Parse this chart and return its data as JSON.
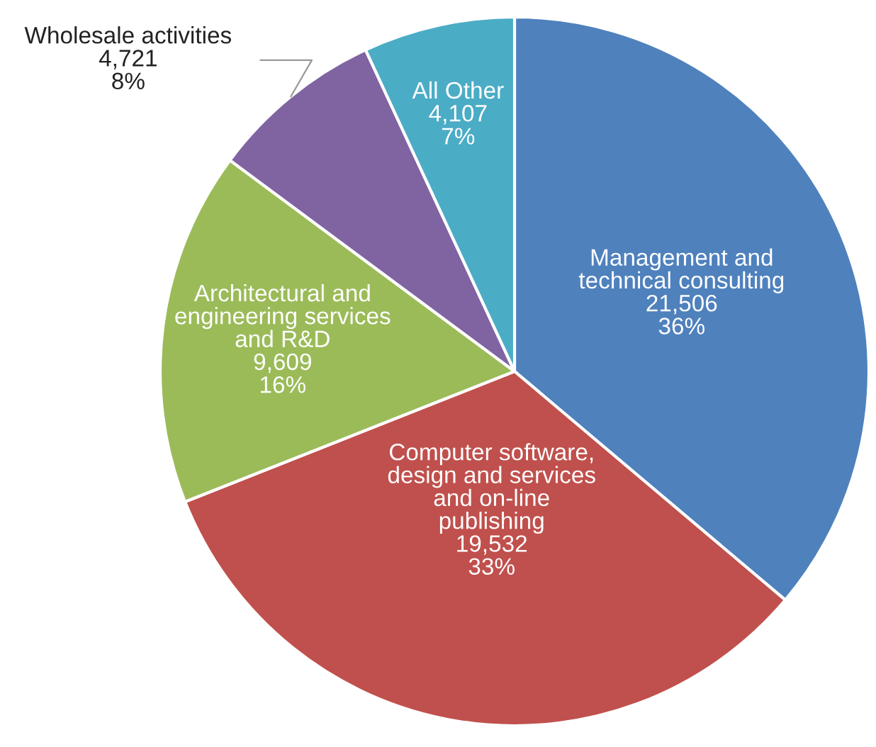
{
  "chart_data": {
    "type": "pie",
    "categories": [
      "Management and\ntechnical consulting",
      "Computer software,\ndesign and services\nand on-line\npublishing",
      "Architectural and\nengineering services\nand R&D",
      "Wholesale activities",
      "All Other"
    ],
    "values": [
      21506,
      19532,
      9609,
      4721,
      4107
    ],
    "value_labels": [
      "21,506\n36%",
      "19,532\n33%",
      "9,609\n16%",
      "4,721\n8%",
      "4,107\n7%"
    ],
    "colors": [
      "#4f81bd",
      "#c0504d",
      "#9bbb59",
      "#8064a2",
      "#4bacc6"
    ]
  }
}
